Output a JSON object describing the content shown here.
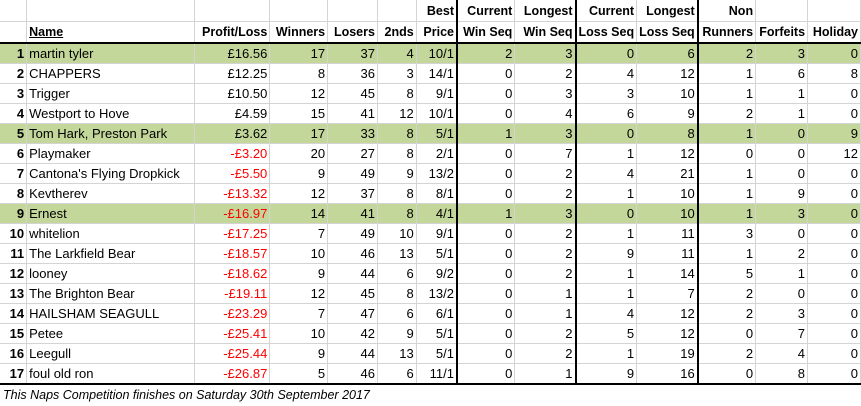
{
  "headers": {
    "row1": [
      "",
      "",
      "",
      "",
      "",
      "",
      "Best",
      "Current",
      "Longest",
      "Current",
      "Longest",
      "Non",
      "",
      ""
    ],
    "row2": [
      "",
      "Name",
      "Profit/Loss",
      "Winners",
      "Losers",
      "2nds",
      "Price",
      "Win Seq",
      "Win Seq",
      "Loss Seq",
      "Loss Seq",
      "Runners",
      "Forfeits",
      "Holiday"
    ]
  },
  "rows": [
    {
      "cells": [
        "1",
        "martin tyler",
        "£16.56",
        "17",
        "37",
        "4",
        "10/1",
        "2",
        "3",
        "0",
        "6",
        "2",
        "3",
        "0"
      ],
      "highlight": true,
      "negative": false
    },
    {
      "cells": [
        "2",
        "CHAPPERS",
        "£12.25",
        "8",
        "36",
        "3",
        "14/1",
        "0",
        "2",
        "4",
        "12",
        "1",
        "6",
        "8"
      ],
      "highlight": false,
      "negative": false
    },
    {
      "cells": [
        "3",
        "Trigger",
        "£10.50",
        "12",
        "45",
        "8",
        "9/1",
        "0",
        "3",
        "3",
        "10",
        "1",
        "1",
        "0"
      ],
      "highlight": false,
      "negative": false
    },
    {
      "cells": [
        "4",
        "Westport to Hove",
        "£4.59",
        "15",
        "41",
        "12",
        "10/1",
        "0",
        "4",
        "6",
        "9",
        "2",
        "1",
        "0"
      ],
      "highlight": false,
      "negative": false
    },
    {
      "cells": [
        "5",
        "Tom Hark, Preston Park",
        "£3.62",
        "17",
        "33",
        "8",
        "5/1",
        "1",
        "3",
        "0",
        "8",
        "1",
        "0",
        "9"
      ],
      "highlight": true,
      "negative": false
    },
    {
      "cells": [
        "6",
        "Playmaker",
        "-£3.20",
        "20",
        "27",
        "8",
        "2/1",
        "0",
        "7",
        "1",
        "12",
        "0",
        "0",
        "12"
      ],
      "highlight": false,
      "negative": true
    },
    {
      "cells": [
        "7",
        "Cantona's Flying Dropkick",
        "-£5.50",
        "9",
        "49",
        "9",
        "13/2",
        "0",
        "2",
        "4",
        "21",
        "1",
        "0",
        "0"
      ],
      "highlight": false,
      "negative": true
    },
    {
      "cells": [
        "8",
        "Kevtherev",
        "-£13.32",
        "12",
        "37",
        "8",
        "8/1",
        "0",
        "2",
        "1",
        "10",
        "1",
        "9",
        "0"
      ],
      "highlight": false,
      "negative": true
    },
    {
      "cells": [
        "9",
        "Ernest",
        "-£16.97",
        "14",
        "41",
        "8",
        "4/1",
        "1",
        "3",
        "0",
        "10",
        "1",
        "3",
        "0"
      ],
      "highlight": true,
      "negative": true
    },
    {
      "cells": [
        "10",
        "whitelion",
        "-£17.25",
        "7",
        "49",
        "10",
        "9/1",
        "0",
        "2",
        "1",
        "11",
        "3",
        "0",
        "0"
      ],
      "highlight": false,
      "negative": true
    },
    {
      "cells": [
        "11",
        "The Larkfield Bear",
        "-£18.57",
        "10",
        "46",
        "13",
        "5/1",
        "0",
        "2",
        "9",
        "11",
        "1",
        "2",
        "0"
      ],
      "highlight": false,
      "negative": true
    },
    {
      "cells": [
        "12",
        "looney",
        "-£18.62",
        "9",
        "44",
        "6",
        "9/2",
        "0",
        "2",
        "1",
        "14",
        "5",
        "1",
        "0"
      ],
      "highlight": false,
      "negative": true
    },
    {
      "cells": [
        "13",
        "The Brighton Bear",
        "-£19.11",
        "12",
        "45",
        "8",
        "13/2",
        "0",
        "1",
        "1",
        "7",
        "2",
        "0",
        "0"
      ],
      "highlight": false,
      "negative": true
    },
    {
      "cells": [
        "14",
        "HAILSHAM SEAGULL",
        "-£23.29",
        "7",
        "47",
        "6",
        "6/1",
        "0",
        "1",
        "4",
        "12",
        "2",
        "3",
        "0"
      ],
      "highlight": false,
      "negative": true
    },
    {
      "cells": [
        "15",
        "Petee",
        "-£25.41",
        "10",
        "42",
        "9",
        "5/1",
        "0",
        "2",
        "5",
        "12",
        "0",
        "7",
        "0"
      ],
      "highlight": false,
      "negative": true
    },
    {
      "cells": [
        "16",
        "Leegull",
        "-£25.44",
        "9",
        "44",
        "13",
        "5/1",
        "0",
        "2",
        "1",
        "19",
        "2",
        "4",
        "0"
      ],
      "highlight": false,
      "negative": true
    },
    {
      "cells": [
        "17",
        "foul old ron",
        "-£26.87",
        "5",
        "46",
        "6",
        "11/1",
        "0",
        "1",
        "9",
        "16",
        "0",
        "8",
        "0"
      ],
      "highlight": false,
      "negative": true
    }
  ],
  "footnote": "This Naps Competition finishes on Saturday 30th September 2017",
  "colors": {
    "highlight": "#c4d79b",
    "negative": "#ff0000",
    "gridline": "#d4d4d4"
  }
}
